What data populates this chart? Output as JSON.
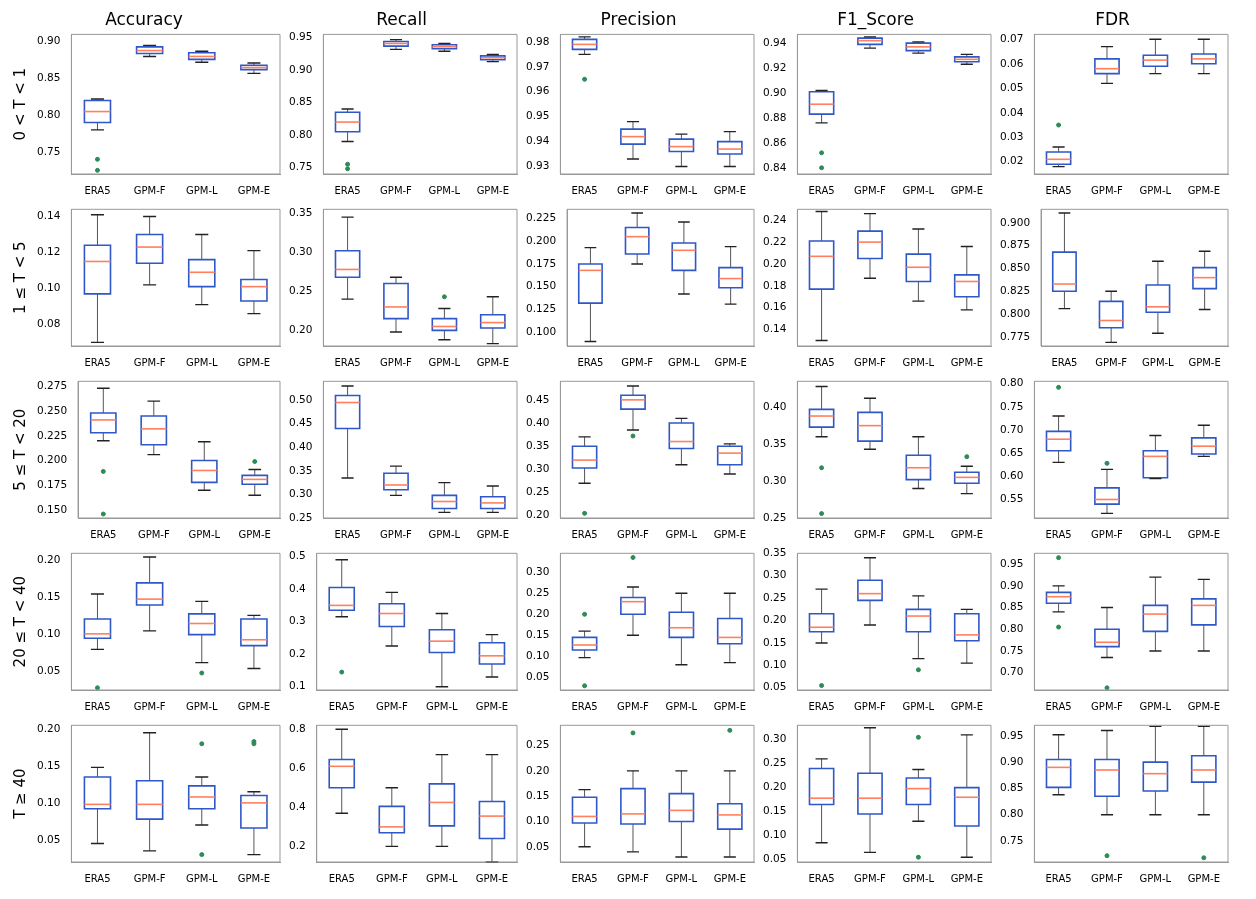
{
  "chart_data": [
    {
      "type": "box",
      "title": "Accuracy",
      "ylabel": "0 < T < 1",
      "categories": [
        "ERA5",
        "GPM-F",
        "GPM-L",
        "GPM-E"
      ],
      "ylim": [
        0.72,
        0.91
      ],
      "yticks": [
        {
          "value": 0.75,
          "label": "0.75"
        },
        {
          "value": 0.8,
          "label": "0.80"
        },
        {
          "value": 0.85,
          "label": "0.85"
        },
        {
          "value": 0.9,
          "label": "0.90"
        }
      ],
      "series": [
        {
          "color": "#2f57c8",
          "boxes": [
            {
              "low": 0.78,
              "q1": 0.79,
              "median": 0.805,
              "q3": 0.82,
              "high": 0.822,
              "outliers": [
                0.74,
                0.725
              ]
            },
            {
              "low": 0.88,
              "q1": 0.884,
              "median": 0.888,
              "q3": 0.893,
              "high": 0.895
            },
            {
              "low": 0.872,
              "q1": 0.876,
              "median": 0.88,
              "q3": 0.885,
              "high": 0.887
            },
            {
              "low": 0.857,
              "q1": 0.862,
              "median": 0.865,
              "q3": 0.868,
              "high": 0.871
            }
          ]
        }
      ]
    },
    {
      "type": "box",
      "title": "Recall",
      "categories": [
        "ERA5",
        "GPM-F",
        "GPM-L",
        "GPM-E"
      ],
      "ylim": [
        0.74,
        0.955
      ],
      "yticks": [
        {
          "value": 0.75,
          "label": "0.75"
        },
        {
          "value": 0.8,
          "label": "0.80"
        },
        {
          "value": 0.85,
          "label": "0.85"
        },
        {
          "value": 0.9,
          "label": "0.90"
        },
        {
          "value": 0.95,
          "label": "0.95"
        }
      ],
      "series": [
        {
          "color": "#2f57c8",
          "boxes": [
            {
              "low": 0.79,
              "q1": 0.805,
              "median": 0.82,
              "q3": 0.835,
              "high": 0.84,
              "outliers": [
                0.755,
                0.748
              ]
            },
            {
              "low": 0.932,
              "q1": 0.937,
              "median": 0.941,
              "q3": 0.944,
              "high": 0.947
            },
            {
              "low": 0.929,
              "q1": 0.933,
              "median": 0.936,
              "q3": 0.939,
              "high": 0.941
            },
            {
              "low": 0.913,
              "q1": 0.916,
              "median": 0.919,
              "q3": 0.922,
              "high": 0.924
            }
          ]
        }
      ]
    },
    {
      "type": "box",
      "title": "Precision",
      "categories": [
        "ERA5",
        "GPM-F",
        "GPM-L",
        "GPM-E"
      ],
      "ylim": [
        0.927,
        0.983
      ],
      "yticks": [
        {
          "value": 0.93,
          "label": "0.93"
        },
        {
          "value": 0.94,
          "label": "0.94"
        },
        {
          "value": 0.95,
          "label": "0.95"
        },
        {
          "value": 0.96,
          "label": "0.96"
        },
        {
          "value": 0.97,
          "label": "0.97"
        },
        {
          "value": 0.98,
          "label": "0.98"
        }
      ],
      "series": [
        {
          "color": "#2f57c8",
          "boxes": [
            {
              "low": 0.975,
              "q1": 0.977,
              "median": 0.979,
              "q3": 0.981,
              "high": 0.982,
              "outliers": [
                0.965
              ]
            },
            {
              "low": 0.933,
              "q1": 0.939,
              "median": 0.942,
              "q3": 0.945,
              "high": 0.948
            },
            {
              "low": 0.93,
              "q1": 0.936,
              "median": 0.938,
              "q3": 0.941,
              "high": 0.943
            },
            {
              "low": 0.93,
              "q1": 0.935,
              "median": 0.937,
              "q3": 0.94,
              "high": 0.944
            }
          ]
        }
      ]
    },
    {
      "type": "box",
      "title": "F1_Score",
      "categories": [
        "ERA5",
        "GPM-F",
        "GPM-L",
        "GPM-E"
      ],
      "ylim": [
        0.835,
        0.947
      ],
      "yticks": [
        {
          "value": 0.84,
          "label": "0.84"
        },
        {
          "value": 0.86,
          "label": "0.86"
        },
        {
          "value": 0.88,
          "label": "0.88"
        },
        {
          "value": 0.9,
          "label": "0.90"
        },
        {
          "value": 0.92,
          "label": "0.92"
        },
        {
          "value": 0.94,
          "label": "0.94"
        }
      ],
      "series": [
        {
          "color": "#2f57c8",
          "boxes": [
            {
              "low": 0.876,
              "q1": 0.883,
              "median": 0.891,
              "q3": 0.901,
              "high": 0.902,
              "outliers": [
                0.852,
                0.84
              ]
            },
            {
              "low": 0.936,
              "q1": 0.939,
              "median": 0.942,
              "q3": 0.944,
              "high": 0.945
            },
            {
              "low": 0.932,
              "q1": 0.934,
              "median": 0.937,
              "q3": 0.94,
              "high": 0.941
            },
            {
              "low": 0.923,
              "q1": 0.925,
              "median": 0.927,
              "q3": 0.929,
              "high": 0.931
            }
          ]
        }
      ]
    },
    {
      "type": "box",
      "title": "FDR",
      "categories": [
        "ERA5",
        "GPM-F",
        "GPM-L",
        "GPM-E"
      ],
      "ylim": [
        0.015,
        0.072
      ],
      "yticks": [
        {
          "value": 0.02,
          "label": "0.02"
        },
        {
          "value": 0.03,
          "label": "0.03"
        },
        {
          "value": 0.04,
          "label": "0.04"
        },
        {
          "value": 0.05,
          "label": "0.05"
        },
        {
          "value": 0.06,
          "label": "0.06"
        },
        {
          "value": 0.07,
          "label": "0.07"
        }
      ],
      "series": [
        {
          "color": "#2f57c8",
          "boxes": [
            {
              "low": 0.018,
              "q1": 0.019,
              "median": 0.021,
              "q3": 0.024,
              "high": 0.026,
              "outliers": [
                0.035
              ]
            },
            {
              "low": 0.052,
              "q1": 0.056,
              "median": 0.058,
              "q3": 0.062,
              "high": 0.067
            },
            {
              "low": 0.056,
              "q1": 0.059,
              "median": 0.0615,
              "q3": 0.0635,
              "high": 0.07
            },
            {
              "low": 0.056,
              "q1": 0.06,
              "median": 0.062,
              "q3": 0.064,
              "high": 0.07
            }
          ]
        }
      ]
    },
    {
      "type": "box",
      "ylabel": "1 ≤ T < 5",
      "categories": [
        "ERA5",
        "GPM-F",
        "GPM-L",
        "GPM-E"
      ],
      "ylim": [
        0.068,
        0.144
      ],
      "yticks": [
        {
          "value": 0.08,
          "label": "0.08"
        },
        {
          "value": 0.1,
          "label": "0.10"
        },
        {
          "value": 0.12,
          "label": "0.12"
        },
        {
          "value": 0.14,
          "label": "0.14"
        }
      ],
      "series": [
        {
          "color": "#2f57c8",
          "boxes": [
            {
              "low": 0.07,
              "q1": 0.097,
              "median": 0.115,
              "q3": 0.124,
              "high": 0.141
            },
            {
              "low": 0.102,
              "q1": 0.114,
              "median": 0.123,
              "q3": 0.13,
              "high": 0.14
            },
            {
              "low": 0.091,
              "q1": 0.101,
              "median": 0.109,
              "q3": 0.116,
              "high": 0.13
            },
            {
              "low": 0.086,
              "q1": 0.093,
              "median": 0.101,
              "q3": 0.105,
              "high": 0.121
            }
          ]
        }
      ]
    },
    {
      "type": "box",
      "categories": [
        "ERA5",
        "GPM-F",
        "GPM-L",
        "GPM-E"
      ],
      "ylim": [
        0.18,
        0.355
      ],
      "yticks": [
        {
          "value": 0.2,
          "label": "0.20"
        },
        {
          "value": 0.25,
          "label": "0.25"
        },
        {
          "value": 0.3,
          "label": "0.30"
        },
        {
          "value": 0.35,
          "label": "0.35"
        }
      ],
      "series": [
        {
          "color": "#2f57c8",
          "boxes": [
            {
              "low": 0.24,
              "q1": 0.268,
              "median": 0.278,
              "q3": 0.302,
              "high": 0.345
            },
            {
              "low": 0.198,
              "q1": 0.215,
              "median": 0.23,
              "q3": 0.26,
              "high": 0.268
            },
            {
              "low": 0.188,
              "q1": 0.2,
              "median": 0.205,
              "q3": 0.215,
              "high": 0.228,
              "outliers": [
                0.243
              ]
            },
            {
              "low": 0.183,
              "q1": 0.203,
              "median": 0.21,
              "q3": 0.22,
              "high": 0.243
            }
          ]
        }
      ]
    },
    {
      "type": "box",
      "categories": [
        "ERA5",
        "GPM-F",
        "GPM-L",
        "GPM-E"
      ],
      "ylim": [
        0.085,
        0.235
      ],
      "yticks": [
        {
          "value": 0.1,
          "label": "0.100"
        },
        {
          "value": 0.125,
          "label": "0.125"
        },
        {
          "value": 0.15,
          "label": "0.150"
        },
        {
          "value": 0.175,
          "label": "0.175"
        },
        {
          "value": 0.2,
          "label": "0.200"
        },
        {
          "value": 0.225,
          "label": "0.225"
        }
      ],
      "series": [
        {
          "color": "#2f57c8",
          "boxes": [
            {
              "low": 0.09,
              "q1": 0.132,
              "median": 0.168,
              "q3": 0.175,
              "high": 0.193
            },
            {
              "low": 0.175,
              "q1": 0.186,
              "median": 0.205,
              "q3": 0.215,
              "high": 0.231
            },
            {
              "low": 0.142,
              "q1": 0.168,
              "median": 0.19,
              "q3": 0.198,
              "high": 0.221
            },
            {
              "low": 0.131,
              "q1": 0.149,
              "median": 0.159,
              "q3": 0.171,
              "high": 0.194
            }
          ]
        }
      ]
    },
    {
      "type": "box",
      "categories": [
        "ERA5",
        "GPM-F",
        "GPM-L",
        "GPM-E"
      ],
      "ylim": [
        0.125,
        0.25
      ],
      "yticks": [
        {
          "value": 0.14,
          "label": "0.14"
        },
        {
          "value": 0.16,
          "label": "0.16"
        },
        {
          "value": 0.18,
          "label": "0.18"
        },
        {
          "value": 0.2,
          "label": "0.20"
        },
        {
          "value": 0.22,
          "label": "0.22"
        },
        {
          "value": 0.24,
          "label": "0.24"
        }
      ],
      "series": [
        {
          "color": "#2f57c8",
          "boxes": [
            {
              "low": 0.13,
              "q1": 0.177,
              "median": 0.207,
              "q3": 0.221,
              "high": 0.248
            },
            {
              "low": 0.187,
              "q1": 0.205,
              "median": 0.22,
              "q3": 0.23,
              "high": 0.246
            },
            {
              "low": 0.166,
              "q1": 0.184,
              "median": 0.197,
              "q3": 0.209,
              "high": 0.232
            },
            {
              "low": 0.158,
              "q1": 0.17,
              "median": 0.184,
              "q3": 0.19,
              "high": 0.216
            }
          ]
        }
      ]
    },
    {
      "type": "box",
      "categories": [
        "ERA5",
        "GPM-F",
        "GPM-L",
        "GPM-E"
      ],
      "ylim": [
        0.765,
        0.915
      ],
      "yticks": [
        {
          "value": 0.775,
          "label": "0.775"
        },
        {
          "value": 0.8,
          "label": "0.800"
        },
        {
          "value": 0.825,
          "label": "0.825"
        },
        {
          "value": 0.85,
          "label": "0.850"
        },
        {
          "value": 0.875,
          "label": "0.875"
        },
        {
          "value": 0.9,
          "label": "0.900"
        }
      ],
      "series": [
        {
          "color": "#2f57c8",
          "boxes": [
            {
              "low": 0.806,
              "q1": 0.825,
              "median": 0.833,
              "q3": 0.868,
              "high": 0.911
            },
            {
              "low": 0.769,
              "q1": 0.785,
              "median": 0.793,
              "q3": 0.814,
              "high": 0.825
            },
            {
              "low": 0.779,
              "q1": 0.802,
              "median": 0.808,
              "q3": 0.832,
              "high": 0.858
            },
            {
              "low": 0.805,
              "q1": 0.828,
              "median": 0.84,
              "q3": 0.851,
              "high": 0.869
            }
          ]
        }
      ]
    },
    {
      "type": "box",
      "ylabel": "5 ≤ T < 20",
      "categories": [
        "ERA5",
        "GPM-F",
        "GPM-L",
        "GPM-E"
      ],
      "ylim": [
        0.142,
        0.28
      ],
      "yticks": [
        {
          "value": 0.15,
          "label": "0.150"
        },
        {
          "value": 0.175,
          "label": "0.175"
        },
        {
          "value": 0.2,
          "label": "0.200"
        },
        {
          "value": 0.225,
          "label": "0.225"
        },
        {
          "value": 0.25,
          "label": "0.250"
        },
        {
          "value": 0.275,
          "label": "0.275"
        }
      ],
      "series": [
        {
          "color": "#2f57c8",
          "boxes": [
            {
              "low": 0.22,
              "q1": 0.228,
              "median": 0.241,
              "q3": 0.248,
              "high": 0.273,
              "outliers": [
                0.189,
                0.146
              ]
            },
            {
              "low": 0.206,
              "q1": 0.216,
              "median": 0.232,
              "q3": 0.245,
              "high": 0.26
            },
            {
              "low": 0.17,
              "q1": 0.178,
              "median": 0.19,
              "q3": 0.2,
              "high": 0.219
            },
            {
              "low": 0.165,
              "q1": 0.176,
              "median": 0.181,
              "q3": 0.185,
              "high": 0.191,
              "outliers": [
                0.199
              ]
            }
          ]
        }
      ]
    },
    {
      "type": "box",
      "categories": [
        "ERA5",
        "GPM-F",
        "GPM-L",
        "GPM-E"
      ],
      "ylim": [
        0.25,
        0.54
      ],
      "yticks": [
        {
          "value": 0.25,
          "label": "0.25"
        },
        {
          "value": 0.3,
          "label": "0.30"
        },
        {
          "value": 0.35,
          "label": "0.35"
        },
        {
          "value": 0.4,
          "label": "0.40"
        },
        {
          "value": 0.45,
          "label": "0.45"
        },
        {
          "value": 0.5,
          "label": "0.50"
        }
      ],
      "series": [
        {
          "color": "#2f57c8",
          "boxes": [
            {
              "low": 0.335,
              "q1": 0.44,
              "median": 0.495,
              "q3": 0.51,
              "high": 0.53
            },
            {
              "low": 0.298,
              "q1": 0.31,
              "median": 0.32,
              "q3": 0.345,
              "high": 0.36
            },
            {
              "low": 0.262,
              "q1": 0.27,
              "median": 0.285,
              "q3": 0.298,
              "high": 0.325
            },
            {
              "low": 0.262,
              "q1": 0.27,
              "median": 0.282,
              "q3": 0.295,
              "high": 0.318
            }
          ]
        }
      ]
    },
    {
      "type": "box",
      "categories": [
        "ERA5",
        "GPM-F",
        "GPM-L",
        "GPM-E"
      ],
      "ylim": [
        0.195,
        0.49
      ],
      "yticks": [
        {
          "value": 0.2,
          "label": "0.20"
        },
        {
          "value": 0.25,
          "label": "0.25"
        },
        {
          "value": 0.3,
          "label": "0.30"
        },
        {
          "value": 0.35,
          "label": "0.35"
        },
        {
          "value": 0.4,
          "label": "0.40"
        },
        {
          "value": 0.45,
          "label": "0.45"
        }
      ],
      "series": [
        {
          "color": "#2f57c8",
          "boxes": [
            {
              "low": 0.27,
              "q1": 0.303,
              "median": 0.32,
              "q3": 0.35,
              "high": 0.37,
              "outliers": [
                0.205
              ]
            },
            {
              "low": 0.385,
              "q1": 0.43,
              "median": 0.45,
              "q3": 0.46,
              "high": 0.48,
              "outliers": [
                0.372
              ]
            },
            {
              "low": 0.31,
              "q1": 0.345,
              "median": 0.36,
              "q3": 0.4,
              "high": 0.41
            },
            {
              "low": 0.29,
              "q1": 0.31,
              "median": 0.335,
              "q3": 0.35,
              "high": 0.355
            }
          ]
        }
      ]
    },
    {
      "type": "box",
      "categories": [
        "ERA5",
        "GPM-F",
        "GPM-L",
        "GPM-E"
      ],
      "ylim": [
        0.25,
        0.435
      ],
      "yticks": [
        {
          "value": 0.25,
          "label": "0.25"
        },
        {
          "value": 0.3,
          "label": "0.30"
        },
        {
          "value": 0.35,
          "label": "0.35"
        },
        {
          "value": 0.4,
          "label": "0.40"
        }
      ],
      "series": [
        {
          "color": "#2f57c8",
          "boxes": [
            {
              "low": 0.36,
              "q1": 0.373,
              "median": 0.388,
              "q3": 0.397,
              "high": 0.428,
              "outliers": [
                0.318,
                0.256
              ]
            },
            {
              "low": 0.343,
              "q1": 0.354,
              "median": 0.375,
              "q3": 0.393,
              "high": 0.412
            },
            {
              "low": 0.29,
              "q1": 0.302,
              "median": 0.318,
              "q3": 0.335,
              "high": 0.36
            },
            {
              "low": 0.283,
              "q1": 0.297,
              "median": 0.305,
              "q3": 0.312,
              "high": 0.32,
              "outliers": [
                0.333
              ]
            }
          ]
        }
      ]
    },
    {
      "type": "box",
      "categories": [
        "ERA5",
        "GPM-F",
        "GPM-L",
        "GPM-E"
      ],
      "ylim": [
        0.51,
        0.805
      ],
      "yticks": [
        {
          "value": 0.55,
          "label": "0.55"
        },
        {
          "value": 0.6,
          "label": "0.60"
        },
        {
          "value": 0.65,
          "label": "0.65"
        },
        {
          "value": 0.7,
          "label": "0.70"
        },
        {
          "value": 0.75,
          "label": "0.75"
        },
        {
          "value": 0.8,
          "label": "0.80"
        }
      ],
      "series": [
        {
          "color": "#2f57c8",
          "boxes": [
            {
              "low": 0.63,
              "q1": 0.655,
              "median": 0.68,
              "q3": 0.697,
              "high": 0.73,
              "outliers": [
                0.792
              ]
            },
            {
              "low": 0.52,
              "q1": 0.54,
              "median": 0.55,
              "q3": 0.575,
              "high": 0.615,
              "outliers": [
                0.628
              ]
            },
            {
              "low": 0.595,
              "q1": 0.597,
              "median": 0.643,
              "q3": 0.655,
              "high": 0.688
            },
            {
              "low": 0.643,
              "q1": 0.648,
              "median": 0.665,
              "q3": 0.683,
              "high": 0.71
            }
          ]
        }
      ]
    },
    {
      "type": "box",
      "ylabel": "20 ≤ T < 40",
      "categories": [
        "ERA5",
        "GPM-F",
        "GPM-L",
        "GPM-E"
      ],
      "ylim": [
        0.025,
        0.21
      ],
      "yticks": [
        {
          "value": 0.05,
          "label": "0.05"
        },
        {
          "value": 0.1,
          "label": "0.10"
        },
        {
          "value": 0.15,
          "label": "0.15"
        },
        {
          "value": 0.2,
          "label": "0.20"
        }
      ],
      "series": [
        {
          "color": "#2f57c8",
          "boxes": [
            {
              "low": 0.08,
              "q1": 0.095,
              "median": 0.101,
              "q3": 0.121,
              "high": 0.155,
              "outliers": [
                0.028
              ]
            },
            {
              "low": 0.105,
              "q1": 0.14,
              "median": 0.148,
              "q3": 0.17,
              "high": 0.205
            },
            {
              "low": 0.062,
              "q1": 0.1,
              "median": 0.115,
              "q3": 0.128,
              "high": 0.145,
              "outliers": [
                0.048
              ]
            },
            {
              "low": 0.054,
              "q1": 0.085,
              "median": 0.093,
              "q3": 0.121,
              "high": 0.126
            }
          ]
        }
      ]
    },
    {
      "type": "box",
      "categories": [
        "ERA5",
        "GPM-F",
        "GPM-L",
        "GPM-E"
      ],
      "ylim": [
        0.09,
        0.51
      ],
      "yticks": [
        {
          "value": 0.1,
          "label": "0.1"
        },
        {
          "value": 0.2,
          "label": "0.2"
        },
        {
          "value": 0.3,
          "label": "0.3"
        },
        {
          "value": 0.4,
          "label": "0.4"
        },
        {
          "value": 0.5,
          "label": "0.5"
        }
      ],
      "series": [
        {
          "color": "#2f57c8",
          "boxes": [
            {
              "low": 0.315,
              "q1": 0.335,
              "median": 0.35,
              "q3": 0.405,
              "high": 0.49,
              "outliers": [
                0.145
              ]
            },
            {
              "low": 0.225,
              "q1": 0.285,
              "median": 0.325,
              "q3": 0.355,
              "high": 0.39
            },
            {
              "low": 0.1,
              "q1": 0.205,
              "median": 0.24,
              "q3": 0.275,
              "high": 0.325
            },
            {
              "low": 0.13,
              "q1": 0.17,
              "median": 0.195,
              "q3": 0.235,
              "high": 0.26
            }
          ]
        }
      ]
    },
    {
      "type": "box",
      "categories": [
        "ERA5",
        "GPM-F",
        "GPM-L",
        "GPM-E"
      ],
      "ylim": [
        0.02,
        0.345
      ],
      "yticks": [
        {
          "value": 0.05,
          "label": "0.05"
        },
        {
          "value": 0.1,
          "label": "0.10"
        },
        {
          "value": 0.15,
          "label": "0.15"
        },
        {
          "value": 0.2,
          "label": "0.20"
        },
        {
          "value": 0.25,
          "label": "0.25"
        },
        {
          "value": 0.3,
          "label": "0.30"
        }
      ],
      "series": [
        {
          "color": "#2f57c8",
          "boxes": [
            {
              "low": 0.097,
              "q1": 0.115,
              "median": 0.127,
              "q3": 0.145,
              "high": 0.16,
              "outliers": [
                0.2,
                0.03
              ]
            },
            {
              "low": 0.15,
              "q1": 0.2,
              "median": 0.23,
              "q3": 0.24,
              "high": 0.265,
              "outliers": [
                0.335
              ]
            },
            {
              "low": 0.08,
              "q1": 0.145,
              "median": 0.168,
              "q3": 0.205,
              "high": 0.25
            },
            {
              "low": 0.085,
              "q1": 0.13,
              "median": 0.145,
              "q3": 0.19,
              "high": 0.25
            }
          ]
        }
      ]
    },
    {
      "type": "box",
      "categories": [
        "ERA5",
        "GPM-F",
        "GPM-L",
        "GPM-E"
      ],
      "ylim": [
        0.045,
        0.35
      ],
      "yticks": [
        {
          "value": 0.05,
          "label": "0.05"
        },
        {
          "value": 0.1,
          "label": "0.10"
        },
        {
          "value": 0.15,
          "label": "0.15"
        },
        {
          "value": 0.2,
          "label": "0.20"
        },
        {
          "value": 0.25,
          "label": "0.25"
        },
        {
          "value": 0.3,
          "label": "0.30"
        },
        {
          "value": 0.35,
          "label": "0.35"
        }
      ],
      "series": [
        {
          "color": "#2f57c8",
          "boxes": [
            {
              "low": 0.15,
              "q1": 0.175,
              "median": 0.185,
              "q3": 0.215,
              "high": 0.27,
              "outliers": [
                0.055
              ]
            },
            {
              "low": 0.19,
              "q1": 0.245,
              "median": 0.26,
              "q3": 0.29,
              "high": 0.34
            },
            {
              "low": 0.115,
              "q1": 0.175,
              "median": 0.21,
              "q3": 0.225,
              "high": 0.255,
              "outliers": [
                0.09
              ]
            },
            {
              "low": 0.105,
              "q1": 0.155,
              "median": 0.168,
              "q3": 0.215,
              "high": 0.225
            }
          ]
        }
      ]
    },
    {
      "type": "box",
      "categories": [
        "ERA5",
        "GPM-F",
        "GPM-L",
        "GPM-E"
      ],
      "ylim": [
        0.66,
        0.975
      ],
      "yticks": [
        {
          "value": 0.7,
          "label": "0.70"
        },
        {
          "value": 0.75,
          "label": "0.75"
        },
        {
          "value": 0.8,
          "label": "0.80"
        },
        {
          "value": 0.85,
          "label": "0.85"
        },
        {
          "value": 0.9,
          "label": "0.90"
        },
        {
          "value": 0.95,
          "label": "0.95"
        }
      ],
      "series": [
        {
          "color": "#2f57c8",
          "boxes": [
            {
              "low": 0.84,
              "q1": 0.86,
              "median": 0.875,
              "q3": 0.885,
              "high": 0.9,
              "outliers": [
                0.965,
                0.805
              ]
            },
            {
              "low": 0.735,
              "q1": 0.76,
              "median": 0.77,
              "q3": 0.8,
              "high": 0.85,
              "outliers": [
                0.665
              ]
            },
            {
              "low": 0.75,
              "q1": 0.795,
              "median": 0.835,
              "q3": 0.855,
              "high": 0.92
            },
            {
              "low": 0.75,
              "q1": 0.81,
              "median": 0.855,
              "q3": 0.87,
              "high": 0.915
            }
          ]
        }
      ]
    },
    {
      "type": "box",
      "ylabel": "T ≥ 40",
      "categories": [
        "ERA5",
        "GPM-F",
        "GPM-L",
        "GPM-E"
      ],
      "ylim": [
        0.02,
        0.205
      ],
      "yticks": [
        {
          "value": 0.05,
          "label": "0.05"
        },
        {
          "value": 0.1,
          "label": "0.10"
        },
        {
          "value": 0.15,
          "label": "0.15"
        },
        {
          "value": 0.2,
          "label": "0.20"
        }
      ],
      "series": [
        {
          "color": "#2f57c8",
          "boxes": [
            {
              "low": 0.045,
              "q1": 0.092,
              "median": 0.098,
              "q3": 0.135,
              "high": 0.148
            },
            {
              "low": 0.035,
              "q1": 0.078,
              "median": 0.098,
              "q3": 0.13,
              "high": 0.195
            },
            {
              "low": 0.07,
              "q1": 0.092,
              "median": 0.108,
              "q3": 0.123,
              "high": 0.135,
              "outliers": [
                0.18,
                0.03
              ]
            },
            {
              "low": 0.03,
              "q1": 0.066,
              "median": 0.1,
              "q3": 0.11,
              "high": 0.115,
              "outliers": [
                0.18,
                0.183
              ]
            }
          ]
        }
      ]
    },
    {
      "type": "box",
      "categories": [
        "ERA5",
        "GPM-F",
        "GPM-L",
        "GPM-E"
      ],
      "ylim": [
        0.12,
        0.82
      ],
      "yticks": [
        {
          "value": 0.2,
          "label": "0.2"
        },
        {
          "value": 0.4,
          "label": "0.4"
        },
        {
          "value": 0.6,
          "label": "0.6"
        },
        {
          "value": 0.8,
          "label": "0.8"
        }
      ],
      "series": [
        {
          "color": "#2f57c8",
          "boxes": [
            {
              "low": 0.37,
              "q1": 0.5,
              "median": 0.61,
              "q3": 0.645,
              "high": 0.8
            },
            {
              "low": 0.2,
              "q1": 0.27,
              "median": 0.3,
              "q3": 0.405,
              "high": 0.5
            },
            {
              "low": 0.2,
              "q1": 0.305,
              "median": 0.425,
              "q3": 0.52,
              "high": 0.67
            },
            {
              "low": 0.12,
              "q1": 0.24,
              "median": 0.355,
              "q3": 0.43,
              "high": 0.67
            }
          ]
        }
      ]
    },
    {
      "type": "box",
      "categories": [
        "ERA5",
        "GPM-F",
        "GPM-L",
        "GPM-E"
      ],
      "ylim": [
        0.02,
        0.29
      ],
      "yticks": [
        {
          "value": 0.05,
          "label": "0.05"
        },
        {
          "value": 0.1,
          "label": "0.10"
        },
        {
          "value": 0.15,
          "label": "0.15"
        },
        {
          "value": 0.2,
          "label": "0.20"
        },
        {
          "value": 0.25,
          "label": "0.25"
        }
      ],
      "series": [
        {
          "color": "#2f57c8",
          "boxes": [
            {
              "low": 0.05,
              "q1": 0.097,
              "median": 0.11,
              "q3": 0.148,
              "high": 0.163
            },
            {
              "low": 0.04,
              "q1": 0.095,
              "median": 0.115,
              "q3": 0.165,
              "high": 0.2,
              "outliers": [
                0.275
              ]
            },
            {
              "low": 0.03,
              "q1": 0.1,
              "median": 0.122,
              "q3": 0.155,
              "high": 0.2
            },
            {
              "low": 0.03,
              "q1": 0.085,
              "median": 0.113,
              "q3": 0.135,
              "high": 0.2,
              "outliers": [
                0.28
              ]
            }
          ]
        }
      ]
    },
    {
      "type": "box",
      "categories": [
        "ERA5",
        "GPM-F",
        "GPM-L",
        "GPM-E"
      ],
      "ylim": [
        0.045,
        0.33
      ],
      "yticks": [
        {
          "value": 0.05,
          "label": "0.05"
        },
        {
          "value": 0.1,
          "label": "0.10"
        },
        {
          "value": 0.15,
          "label": "0.15"
        },
        {
          "value": 0.2,
          "label": "0.20"
        },
        {
          "value": 0.25,
          "label": "0.25"
        },
        {
          "value": 0.3,
          "label": "0.30"
        }
      ],
      "series": [
        {
          "color": "#2f57c8",
          "boxes": [
            {
              "low": 0.085,
              "q1": 0.165,
              "median": 0.178,
              "q3": 0.24,
              "high": 0.26
            },
            {
              "low": 0.065,
              "q1": 0.145,
              "median": 0.178,
              "q3": 0.23,
              "high": 0.325
            },
            {
              "low": 0.13,
              "q1": 0.165,
              "median": 0.198,
              "q3": 0.22,
              "high": 0.238,
              "outliers": [
                0.305,
                0.055
              ]
            },
            {
              "low": 0.055,
              "q1": 0.12,
              "median": 0.18,
              "q3": 0.2,
              "high": 0.31
            }
          ]
        }
      ]
    },
    {
      "type": "box",
      "categories": [
        "ERA5",
        "GPM-F",
        "GPM-L",
        "GPM-E"
      ],
      "ylim": [
        0.71,
        0.97
      ],
      "yticks": [
        {
          "value": 0.75,
          "label": "0.75"
        },
        {
          "value": 0.8,
          "label": "0.80"
        },
        {
          "value": 0.85,
          "label": "0.85"
        },
        {
          "value": 0.9,
          "label": "0.90"
        },
        {
          "value": 0.95,
          "label": "0.95"
        }
      ],
      "series": [
        {
          "color": "#2f57c8",
          "boxes": [
            {
              "low": 0.838,
              "q1": 0.852,
              "median": 0.89,
              "q3": 0.905,
              "high": 0.952
            },
            {
              "low": 0.8,
              "q1": 0.835,
              "median": 0.885,
              "q3": 0.905,
              "high": 0.96,
              "outliers": [
                0.722
              ]
            },
            {
              "low": 0.8,
              "q1": 0.845,
              "median": 0.878,
              "q3": 0.9,
              "high": 0.968
            },
            {
              "low": 0.8,
              "q1": 0.862,
              "median": 0.885,
              "q3": 0.912,
              "high": 0.968,
              "outliers": [
                0.718
              ]
            }
          ]
        }
      ]
    }
  ]
}
